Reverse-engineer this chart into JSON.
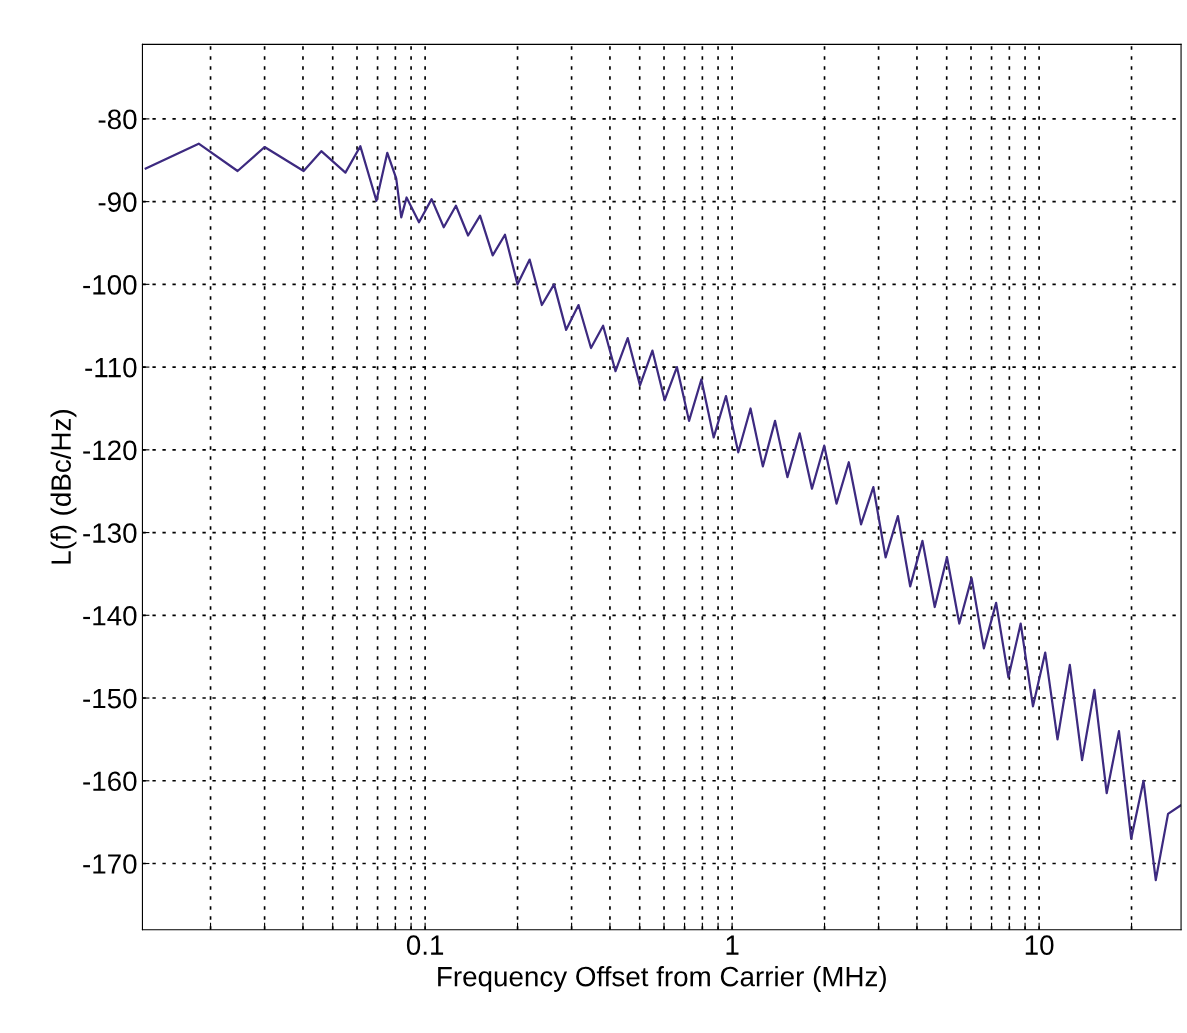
{
  "chart_data": {
    "type": "line",
    "xlabel": "Frequency Offset from Carrier (MHz)",
    "ylabel": "L(f) (dBc/Hz)",
    "log": "x",
    "grid": true,
    "xlim": [
      0.012,
      29
    ],
    "ylim": [
      -178,
      -71
    ],
    "xticks": [
      {
        "value": 0.02,
        "label": null
      },
      {
        "value": 0.03,
        "label": null
      },
      {
        "value": 0.04,
        "label": null
      },
      {
        "value": 0.05,
        "label": null
      },
      {
        "value": 0.06,
        "label": null
      },
      {
        "value": 0.07,
        "label": null
      },
      {
        "value": 0.08,
        "label": null
      },
      {
        "value": 0.09,
        "label": null
      },
      0.1,
      {
        "value": 0.2,
        "label": null
      },
      {
        "value": 0.3,
        "label": null
      },
      {
        "value": 0.4,
        "label": null
      },
      {
        "value": 0.5,
        "label": null
      },
      {
        "value": 0.6,
        "label": null
      },
      {
        "value": 0.7,
        "label": null
      },
      {
        "value": 0.8,
        "label": null
      },
      {
        "value": 0.9,
        "label": null
      },
      1,
      {
        "value": 2,
        "label": null
      },
      {
        "value": 3,
        "label": null
      },
      {
        "value": 4,
        "label": null
      },
      {
        "value": 5,
        "label": null
      },
      {
        "value": 6,
        "label": null
      },
      {
        "value": 7,
        "label": null
      },
      {
        "value": 8,
        "label": null
      },
      {
        "value": 9,
        "label": null
      },
      10,
      {
        "value": 20,
        "label": null
      }
    ],
    "yticks": [
      -170,
      -160,
      -150,
      -140,
      -130,
      -120,
      -110,
      -100,
      -90,
      -80
    ],
    "series": [
      {
        "color": "#3d2a80",
        "x": [
          0.0123,
          0.0183,
          0.0245,
          0.03,
          0.0402,
          0.0459,
          0.055,
          0.0615,
          0.0694,
          0.0753,
          0.0805,
          0.0836,
          0.087,
          0.0955,
          0.105,
          0.115,
          0.126,
          0.138,
          0.151,
          0.166,
          0.182,
          0.2,
          0.219,
          0.24,
          0.263,
          0.288,
          0.316,
          0.347,
          0.38,
          0.417,
          0.457,
          0.501,
          0.55,
          0.603,
          0.661,
          0.724,
          0.794,
          0.871,
          0.955,
          1.047,
          1.148,
          1.259,
          1.38,
          1.514,
          1.66,
          1.82,
          1.995,
          2.188,
          2.399,
          2.63,
          2.884,
          3.162,
          3.467,
          3.802,
          4.169,
          4.571,
          5.012,
          5.495,
          6.026,
          6.607,
          7.244,
          7.943,
          8.71,
          9.55,
          10.47,
          11.48,
          12.59,
          13.8,
          15.14,
          16.6,
          18.2,
          19.95,
          21.88,
          23.99,
          26.3,
          28.84
        ],
        "values": [
          -86.0,
          -83.0,
          -86.3,
          -83.4,
          -86.3,
          -83.9,
          -86.5,
          -83.3,
          -89.9,
          -84.1,
          -87.2,
          -91.9,
          -89.5,
          -92.5,
          -89.7,
          -93.1,
          -90.5,
          -94.1,
          -91.7,
          -96.5,
          -94,
          -100,
          -97,
          -102.5,
          -100,
          -105.5,
          -102.5,
          -107.7,
          -105,
          -110.5,
          -106.5,
          -112.2,
          -108,
          -114,
          -110,
          -116.5,
          -111.5,
          -118.5,
          -113.5,
          -120.3,
          -115,
          -122,
          -116.5,
          -123.3,
          -118,
          -124.7,
          -119.5,
          -126.5,
          -121.5,
          -129,
          -124.5,
          -133,
          -128,
          -136.5,
          -131,
          -139,
          -133,
          -141,
          -135.5,
          -144,
          -138.5,
          -147.5,
          -141,
          -151,
          -144.5,
          -155,
          -146,
          -157.5,
          -149,
          -161.5,
          -154,
          -167,
          -160,
          -172,
          -164,
          -163
        ]
      }
    ]
  }
}
